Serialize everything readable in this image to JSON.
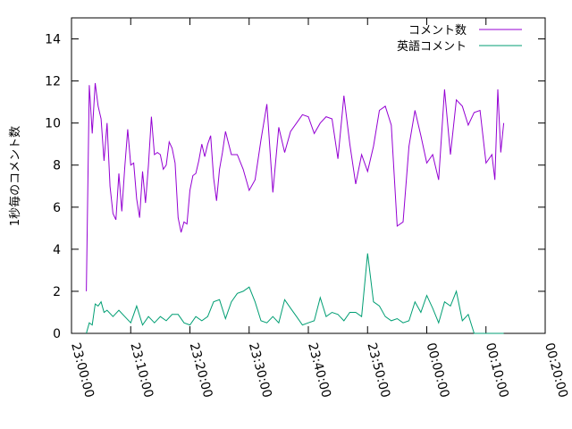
{
  "chart_data": {
    "type": "line",
    "title": "",
    "xlabel": "",
    "ylabel": "1秒毎のコメント数",
    "grid": false,
    "legend_position": "top-right",
    "x_tick_labels": [
      "23:00:00",
      "23:10:00",
      "23:20:00",
      "23:30:00",
      "23:40:00",
      "23:50:00",
      "00:00:00",
      "00:10:00",
      "00:20:00"
    ],
    "xlim": [
      0,
      80
    ],
    "ylim": [
      0,
      15
    ],
    "y_ticks": [
      0,
      2,
      4,
      6,
      8,
      10,
      12,
      14
    ],
    "series": [
      {
        "name": "コメント数",
        "color": "#9400d3",
        "x": [
          2.5,
          3.0,
          3.5,
          4.0,
          4.5,
          5.0,
          5.5,
          6.0,
          6.5,
          7.0,
          7.5,
          8.0,
          8.5,
          9.0,
          9.5,
          10.0,
          10.5,
          11.0,
          11.5,
          12.0,
          12.5,
          13.0,
          13.5,
          14.0,
          14.5,
          15.0,
          15.5,
          16.0,
          16.5,
          17.0,
          17.5,
          18.0,
          18.5,
          19.0,
          19.5,
          20.0,
          20.5,
          21.0,
          21.5,
          22.0,
          22.5,
          23.0,
          23.5,
          24.0,
          24.5,
          25.0,
          25.5,
          26.0,
          27.0,
          28.0,
          29.0,
          30.0,
          31.0,
          32.0,
          33.0,
          34.0,
          35.0,
          36.0,
          37.0,
          38.0,
          39.0,
          40.0,
          41.0,
          42.0,
          43.0,
          44.0,
          45.0,
          46.0,
          47.0,
          48.0,
          49.0,
          50.0,
          51.0,
          52.0,
          53.0,
          54.0,
          55.0,
          56.0,
          57.0,
          58.0,
          59.0,
          60.0,
          61.0,
          62.0,
          63.0,
          64.0,
          65.0,
          66.0,
          67.0,
          68.0,
          69.0,
          70.0,
          71.0,
          71.5,
          72.0,
          72.5,
          73.0
        ],
        "y": [
          2.0,
          11.8,
          9.5,
          11.9,
          10.8,
          10.2,
          8.2,
          10.0,
          7.0,
          5.7,
          5.4,
          7.6,
          5.8,
          7.9,
          9.7,
          8.0,
          8.1,
          6.4,
          5.5,
          7.7,
          6.2,
          8.0,
          10.3,
          8.5,
          8.6,
          8.5,
          7.8,
          8.0,
          9.1,
          8.8,
          8.1,
          5.5,
          4.8,
          5.3,
          5.2,
          6.8,
          7.5,
          7.6,
          8.2,
          9.0,
          8.4,
          9.0,
          9.4,
          7.4,
          6.3,
          7.8,
          8.6,
          9.6,
          8.5,
          8.5,
          7.8,
          6.8,
          7.3,
          9.2,
          10.9,
          6.7,
          9.8,
          8.6,
          9.6,
          10.0,
          10.4,
          10.3,
          9.5,
          10.0,
          10.3,
          10.2,
          8.3,
          11.3,
          9.0,
          7.1,
          8.5,
          7.7,
          8.9,
          10.6,
          10.8,
          9.9,
          5.1,
          5.3,
          8.9,
          10.6,
          9.4,
          8.1,
          8.5,
          7.3,
          11.6,
          8.5,
          11.1,
          10.8,
          9.9,
          10.5,
          10.6,
          8.1,
          8.5,
          7.3,
          11.6,
          8.6,
          10.0
        ]
      },
      {
        "name": "英語コメント",
        "color": "#009e73",
        "x": [
          2.5,
          3.0,
          3.5,
          4.0,
          4.5,
          5.0,
          5.5,
          6.0,
          7.0,
          8.0,
          9.0,
          10.0,
          11.0,
          12.0,
          13.0,
          14.0,
          15.0,
          16.0,
          17.0,
          18.0,
          19.0,
          20.0,
          21.0,
          22.0,
          23.0,
          24.0,
          25.0,
          26.0,
          27.0,
          28.0,
          29.0,
          30.0,
          31.0,
          32.0,
          33.0,
          34.0,
          35.0,
          36.0,
          37.0,
          38.0,
          39.0,
          40.0,
          41.0,
          42.0,
          43.0,
          44.0,
          45.0,
          46.0,
          47.0,
          48.0,
          49.0,
          50.0,
          51.0,
          52.0,
          53.0,
          54.0,
          55.0,
          56.0,
          57.0,
          58.0,
          59.0,
          60.0,
          61.0,
          62.0,
          63.0,
          64.0,
          65.0,
          66.0,
          67.0,
          68.0,
          69.0,
          70.0,
          71.0,
          71.5,
          72.0,
          72.5,
          73.0
        ],
        "y": [
          0.0,
          0.5,
          0.4,
          1.4,
          1.3,
          1.5,
          1.0,
          1.1,
          0.8,
          1.1,
          0.8,
          0.5,
          1.3,
          0.4,
          0.8,
          0.5,
          0.8,
          0.6,
          0.9,
          0.9,
          0.5,
          0.4,
          0.8,
          0.6,
          0.8,
          1.5,
          1.6,
          0.7,
          1.5,
          1.9,
          2.0,
          2.2,
          1.5,
          0.6,
          0.5,
          0.8,
          0.5,
          1.6,
          1.2,
          0.8,
          0.4,
          0.5,
          0.6,
          1.7,
          0.8,
          1.0,
          0.9,
          0.6,
          1.0,
          1.0,
          0.8,
          3.8,
          1.5,
          1.3,
          0.8,
          0.6,
          0.7,
          0.5,
          0.6,
          1.5,
          1.0,
          1.8,
          1.2,
          0.5,
          1.5,
          1.3,
          2.0,
          0.6,
          0.9,
          0.0,
          0.0,
          0.0,
          0.0,
          0.0,
          0.0,
          0.0,
          0.0
        ]
      }
    ]
  }
}
